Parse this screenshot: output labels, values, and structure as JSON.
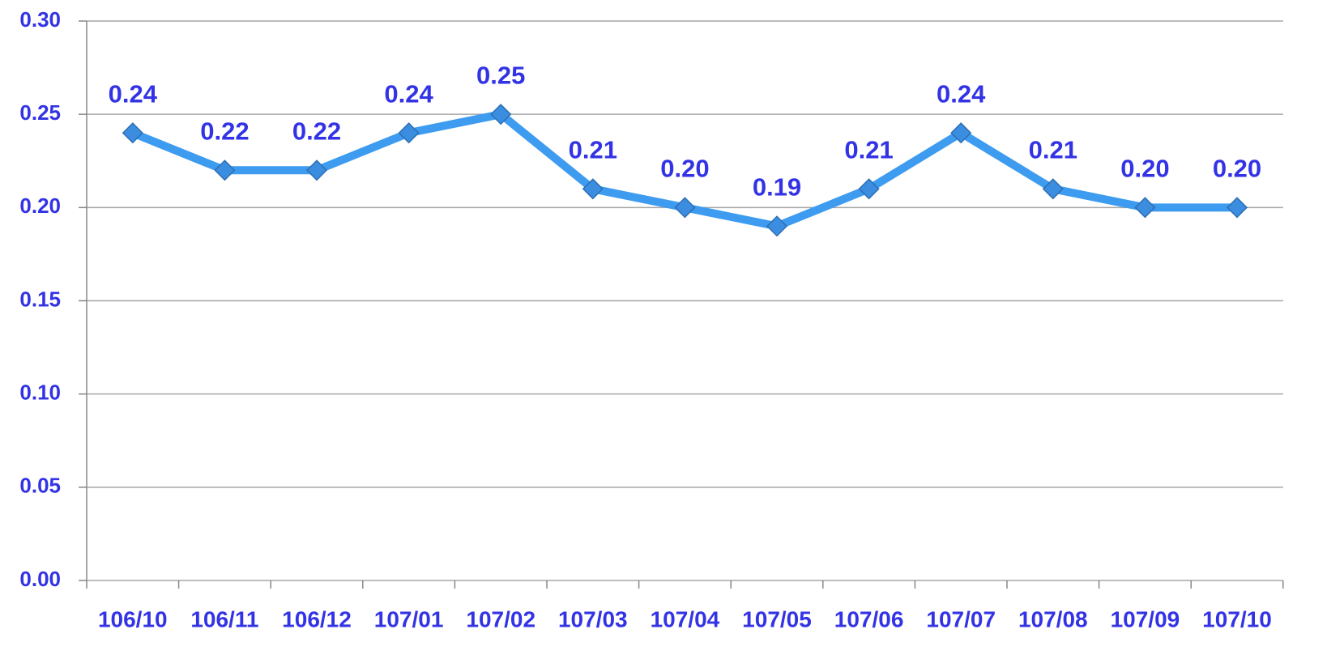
{
  "chart_data": {
    "type": "line",
    "categories": [
      "106/10",
      "106/11",
      "106/12",
      "107/01",
      "107/02",
      "107/03",
      "107/04",
      "107/05",
      "107/06",
      "107/07",
      "107/08",
      "107/09",
      "107/10"
    ],
    "series": [
      {
        "color": "#3d9bf0",
        "values": [
          0.24,
          0.22,
          0.22,
          0.24,
          0.25,
          0.21,
          0.2,
          0.19,
          0.21,
          0.24,
          0.21,
          0.2,
          0.2
        ],
        "value_labels": [
          "0.24",
          "0.22",
          "0.22",
          "0.24",
          "0.25",
          "0.21",
          "0.20",
          "0.19",
          "0.21",
          "0.24",
          "0.21",
          "0.20",
          "0.20"
        ]
      }
    ],
    "ylim": [
      0,
      0.3
    ],
    "yticks": [
      {
        "value": 0,
        "label": "0.00"
      },
      {
        "value": 0.05,
        "label": "0.05"
      },
      {
        "value": 0.1,
        "label": "0.10"
      },
      {
        "value": 0.15,
        "label": "0.15"
      },
      {
        "value": 0.2,
        "label": "0.20"
      },
      {
        "value": 0.25,
        "label": "0.25"
      },
      {
        "value": 0.3,
        "label": "0.30"
      }
    ],
    "grid": true
  }
}
